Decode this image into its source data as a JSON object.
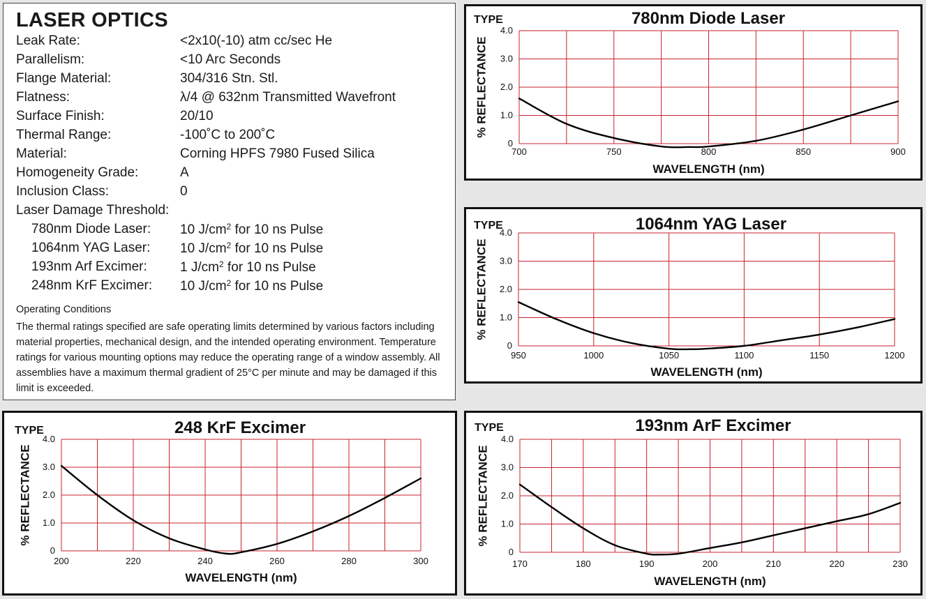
{
  "specs": {
    "title": "LASER OPTICS",
    "rows": [
      {
        "label": "Leak Rate:",
        "value": "<2x10(-10) atm cc/sec He"
      },
      {
        "label": "Parallelism:",
        "value": "<10 Arc Seconds"
      },
      {
        "label": "Flange Material:",
        "value": "304/316 Stn. Stl."
      },
      {
        "label": "Flatness:",
        "value": "λ/4 @ 632nm Transmitted Wavefront"
      },
      {
        "label": "Surface Finish:",
        "value": "20/10"
      },
      {
        "label": "Thermal Range:",
        "value": "-100˚C to 200˚C"
      },
      {
        "label": "Material:",
        "value": "Corning HPFS 7980 Fused Silica"
      },
      {
        "label": "Homogeneity Grade:",
        "value": "A"
      },
      {
        "label": "Inclusion Class:",
        "value": "0"
      },
      {
        "label": "Laser Damage Threshold:",
        "value": ""
      }
    ],
    "damage_rows": [
      {
        "label": "780nm Diode Laser:",
        "pre": "10 J/cm",
        "sup": "2",
        "post": " for 10 ns Pulse"
      },
      {
        "label": "1064nm YAG Laser:",
        "pre": "10 J/cm",
        "sup": "2",
        "post": " for 10 ns Pulse"
      },
      {
        "label": "193nm Arf Excimer:",
        "pre": "1 J/cm",
        "sup": "2",
        "post": " for 10 ns Pulse"
      },
      {
        "label": "248nm KrF Excimer:",
        "pre": "10 J/cm",
        "sup": "2",
        "post": " for 10 ns Pulse"
      }
    ],
    "operating_title": "Operating Conditions",
    "operating_text": "The thermal ratings specified are safe operating limits determined by various factors including material properties, mechanical design, and the intended operating environment. Temperature ratings for various mounting options may reduce the operating range of a window assembly. All assemblies have a maximum thermal gradient of 25°C per minute and may be damaged if this limit is exceeded."
  },
  "colors": {
    "grid": "#c8202e",
    "curve": "#000000",
    "frame": "#111111"
  },
  "chart_data": [
    {
      "type": "line",
      "type_label": "TYPE",
      "title": "780nm Diode Laser",
      "xlabel": "WAVELENGTH (nm)",
      "ylabel": "% REFLECTANCE",
      "xlim": [
        700,
        900
      ],
      "ylim": [
        0,
        4
      ],
      "x_ticks": [
        700,
        750,
        800,
        850,
        900
      ],
      "x_tick_labels": [
        "700",
        "750",
        "800",
        "850",
        "900"
      ],
      "y_ticks": [
        0,
        1,
        2,
        3,
        4
      ],
      "y_tick_labels": [
        "0",
        "1.0",
        "2.0",
        "3.0",
        "4.0"
      ],
      "x_grid_step": 25,
      "y_grid_step": 1,
      "grid": true,
      "x": [
        700,
        725,
        750,
        775,
        790,
        800,
        825,
        850,
        875,
        900
      ],
      "y": [
        1.6,
        0.7,
        0.2,
        -0.1,
        -0.12,
        -0.1,
        0.1,
        0.5,
        1.0,
        1.5
      ]
    },
    {
      "type": "line",
      "type_label": "TYPE",
      "title": "1064nm YAG Laser",
      "xlabel": "WAVELENGTH (nm)",
      "ylabel": "% REFLECTANCE",
      "xlim": [
        950,
        1200
      ],
      "ylim": [
        0,
        4
      ],
      "x_ticks": [
        950,
        1000,
        1050,
        1100,
        1150,
        1200
      ],
      "x_tick_labels": [
        "950",
        "1000",
        "1050",
        "1100",
        "1150",
        "1200"
      ],
      "y_ticks": [
        0,
        1,
        2,
        3,
        4
      ],
      "y_tick_labels": [
        "0",
        "1.0",
        "2.0",
        "3.0",
        "4.0"
      ],
      "x_grid_step": 50,
      "y_grid_step": 1,
      "grid": true,
      "x": [
        950,
        975,
        1000,
        1025,
        1050,
        1064,
        1075,
        1100,
        1125,
        1150,
        1175,
        1200
      ],
      "y": [
        1.55,
        0.95,
        0.45,
        0.1,
        -0.1,
        -0.12,
        -0.1,
        0.0,
        0.2,
        0.4,
        0.65,
        0.95
      ]
    },
    {
      "type": "line",
      "type_label": "TYPE",
      "title": "248 KrF Excimer",
      "xlabel": "WAVELENGTH (nm)",
      "ylabel": "% REFLECTANCE",
      "xlim": [
        200,
        300
      ],
      "ylim": [
        0,
        4
      ],
      "x_ticks": [
        200,
        220,
        240,
        260,
        280,
        300
      ],
      "x_tick_labels": [
        "200",
        "220",
        "240",
        "260",
        "280",
        "300"
      ],
      "y_ticks": [
        0,
        1,
        2,
        3,
        4
      ],
      "y_tick_labels": [
        "0",
        "1.0",
        "2.0",
        "3.0",
        "4.0"
      ],
      "x_grid_step": 10,
      "y_grid_step": 1,
      "grid": true,
      "x": [
        200,
        210,
        220,
        230,
        240,
        246,
        250,
        260,
        270,
        280,
        290,
        300
      ],
      "y": [
        3.05,
        2.0,
        1.1,
        0.45,
        0.05,
        -0.1,
        -0.05,
        0.25,
        0.7,
        1.25,
        1.9,
        2.6
      ]
    },
    {
      "type": "line",
      "type_label": "TYPE",
      "title": "193nm ArF Excimer",
      "xlabel": "WAVELENGTH (nm)",
      "ylabel": "% REFLECTANCE",
      "xlim": [
        170,
        230
      ],
      "ylim": [
        0,
        4
      ],
      "x_ticks": [
        170,
        180,
        190,
        200,
        210,
        220,
        230
      ],
      "x_tick_labels": [
        "170",
        "180",
        "190",
        "200",
        "210",
        "220",
        "230"
      ],
      "y_ticks": [
        0,
        1,
        2,
        3,
        4
      ],
      "y_tick_labels": [
        "0",
        "1.0",
        "2.0",
        "3.0",
        "4.0"
      ],
      "x_grid_step": 5,
      "y_grid_step": 1,
      "grid": true,
      "x": [
        170,
        175,
        180,
        185,
        190,
        192,
        195,
        200,
        205,
        210,
        215,
        220,
        225,
        230
      ],
      "y": [
        2.4,
        1.6,
        0.85,
        0.25,
        -0.05,
        -0.08,
        -0.05,
        0.15,
        0.35,
        0.6,
        0.85,
        1.1,
        1.35,
        1.75
      ]
    }
  ]
}
